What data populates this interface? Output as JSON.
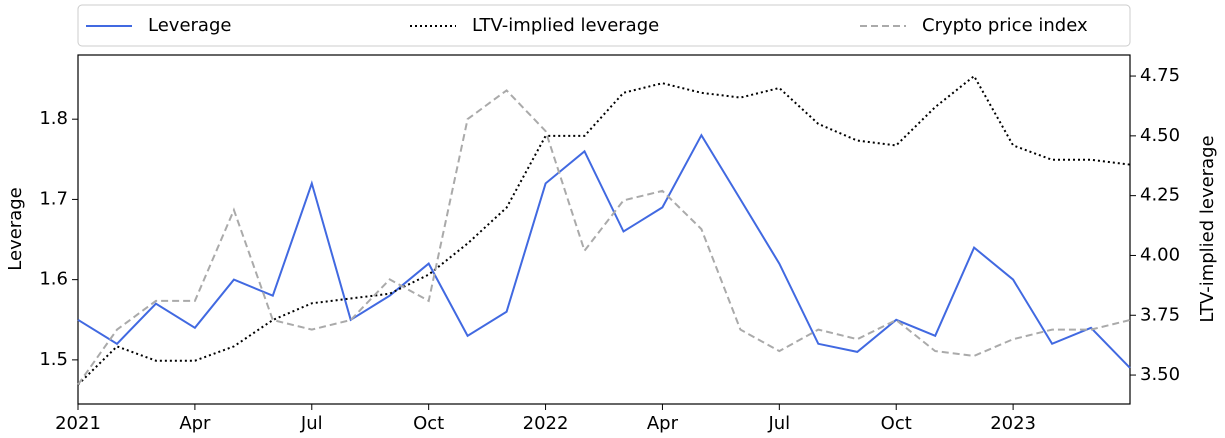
{
  "chart_data": {
    "type": "line",
    "ylabel": "Leverage",
    "y2label": "LTV-implied leverage",
    "ylabel_color": "#4169e1",
    "x": [
      "2021-01",
      "2021-02",
      "2021-03",
      "2021-04",
      "2021-05",
      "2021-06",
      "2021-07",
      "2021-08",
      "2021-09",
      "2021-10",
      "2021-11",
      "2021-12",
      "2022-01",
      "2022-02",
      "2022-03",
      "2022-04",
      "2022-05",
      "2022-06",
      "2022-07",
      "2022-08",
      "2022-09",
      "2022-10",
      "2022-11",
      "2022-12",
      "2023-01",
      "2023-02",
      "2023-03",
      "2023-04"
    ],
    "xlim": [
      "2021-01",
      "2023-04"
    ],
    "xticks": [
      {
        "value": "2021-01",
        "label": "2021"
      },
      {
        "value": "2021-04",
        "label": "Apr"
      },
      {
        "value": "2021-07",
        "label": "Jul"
      },
      {
        "value": "2021-10",
        "label": "Oct"
      },
      {
        "value": "2022-01",
        "label": "2022"
      },
      {
        "value": "2022-04",
        "label": "Apr"
      },
      {
        "value": "2022-07",
        "label": "Jul"
      },
      {
        "value": "2022-10",
        "label": "Oct"
      },
      {
        "value": "2023-01",
        "label": "2023"
      }
    ],
    "ylim": [
      1.445,
      1.88
    ],
    "yticks": [
      1.5,
      1.6,
      1.7,
      1.8
    ],
    "y2lim": [
      3.379,
      4.838
    ],
    "y2ticks": [
      {
        "value": 3.5,
        "label": "3.50"
      },
      {
        "value": 3.75,
        "label": "3.75"
      },
      {
        "value": 4,
        "label": "4.00"
      },
      {
        "value": 4.25,
        "label": "4.25"
      },
      {
        "value": 4.5,
        "label": "4.50"
      },
      {
        "value": 4.75,
        "label": "4.75"
      }
    ],
    "legend": "upper center outside",
    "series": [
      {
        "name": "Leverage",
        "color": "#4169e1",
        "dash": "solid",
        "axis": "y",
        "values": [
          1.55,
          1.52,
          1.57,
          1.54,
          1.6,
          1.58,
          1.72,
          1.55,
          1.58,
          1.62,
          1.53,
          1.56,
          1.72,
          1.76,
          1.66,
          1.69,
          1.78,
          1.7,
          1.62,
          1.52,
          1.51,
          1.55,
          1.53,
          1.64,
          1.6,
          1.52,
          1.54,
          1.49
        ]
      },
      {
        "name": "LTV-implied leverage",
        "color": "#000000",
        "dash": "dotted",
        "axis": "y2",
        "values": [
          3.46,
          3.62,
          3.56,
          3.56,
          3.62,
          3.73,
          3.8,
          3.82,
          3.84,
          3.92,
          4.05,
          4.2,
          4.5,
          4.5,
          4.68,
          4.72,
          4.68,
          4.66,
          4.7,
          4.55,
          4.48,
          4.46,
          4.62,
          4.75,
          4.46,
          4.4,
          4.4,
          4.38
        ]
      },
      {
        "name": "Crypto price index",
        "color": "#aaaaaa",
        "dash": "dashed",
        "axis": "y2",
        "values": [
          3.46,
          3.69,
          3.81,
          3.81,
          4.19,
          3.73,
          3.69,
          3.73,
          3.9,
          3.81,
          4.57,
          4.69,
          4.52,
          4.02,
          4.23,
          4.27,
          4.11,
          3.69,
          3.6,
          3.69,
          3.65,
          3.73,
          3.6,
          3.58,
          3.65,
          3.69,
          3.69,
          3.73
        ]
      }
    ]
  }
}
